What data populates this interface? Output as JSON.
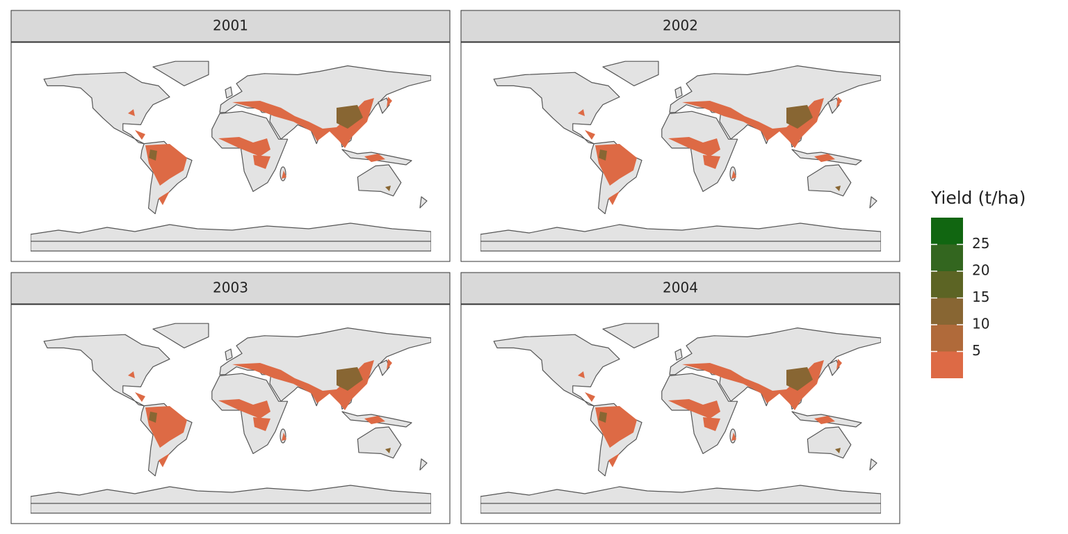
{
  "facets": [
    "2001",
    "2002",
    "2003",
    "2004"
  ],
  "legend": {
    "title": "Yield (t/ha)",
    "ticks": [
      5,
      10,
      15,
      20,
      25
    ],
    "lim": [
      0,
      30
    ],
    "colors": [
      "#dd6a45",
      "#b06a3a",
      "#886633",
      "#5c6424",
      "#33661f",
      "#116611"
    ]
  }
}
